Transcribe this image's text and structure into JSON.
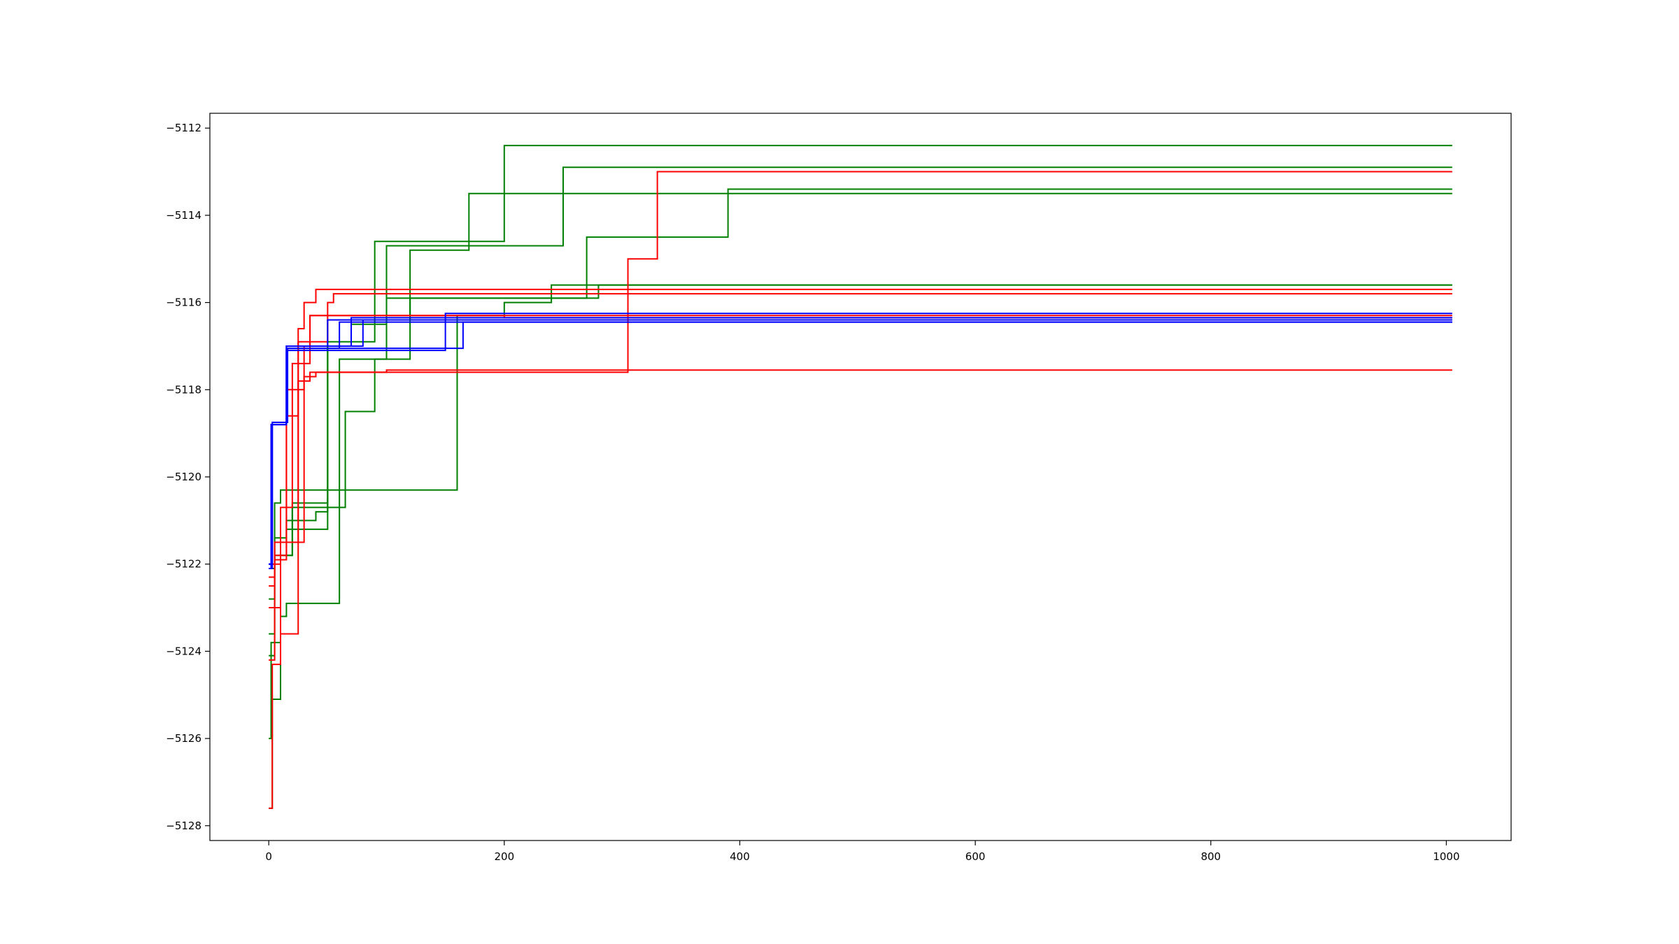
{
  "chart_data": {
    "type": "line",
    "title": "",
    "xlabel": "",
    "ylabel": "",
    "xlim": [
      -50,
      1055
    ],
    "ylim": [
      -5128.34,
      -5111.66
    ],
    "grid": false,
    "legend": "none",
    "x_ticks": [
      0,
      200,
      400,
      600,
      800,
      1000
    ],
    "x_tick_labels": [
      "0",
      "200",
      "400",
      "600",
      "800",
      "1000"
    ],
    "y_ticks": [
      -5112,
      -5114,
      -5116,
      -5118,
      -5120,
      -5122,
      -5124,
      -5126,
      -5128
    ],
    "y_tick_labels": [
      "−5112",
      "−5114",
      "−5116",
      "−5118",
      "−5120",
      "−5122",
      "−5124",
      "−5126",
      "−5128"
    ],
    "colors": {
      "blue": "#0000ff",
      "green": "#008000",
      "red": "#ff0000"
    },
    "series": [
      {
        "color": "#008000",
        "points": [
          [
            0,
            -5127.6
          ],
          [
            3,
            -5127.6
          ],
          [
            3,
            -5125.1
          ],
          [
            10,
            -5125.1
          ],
          [
            10,
            -5121.8
          ],
          [
            20,
            -5121.8
          ],
          [
            20,
            -5121.0
          ],
          [
            40,
            -5121.0
          ],
          [
            40,
            -5120.8
          ],
          [
            50,
            -5120.8
          ],
          [
            50,
            -5116.9
          ],
          [
            90,
            -5116.9
          ],
          [
            90,
            -5114.6
          ],
          [
            200,
            -5114.6
          ],
          [
            200,
            -5112.4
          ],
          [
            1005,
            -5112.4
          ]
        ]
      },
      {
        "color": "#008000",
        "points": [
          [
            0,
            -5126.0
          ],
          [
            2,
            -5126.0
          ],
          [
            2,
            -5123.8
          ],
          [
            10,
            -5123.8
          ],
          [
            10,
            -5123.2
          ],
          [
            15,
            -5123.2
          ],
          [
            15,
            -5122.9
          ],
          [
            60,
            -5122.9
          ],
          [
            60,
            -5117.3
          ],
          [
            100,
            -5117.3
          ],
          [
            100,
            -5114.7
          ],
          [
            250,
            -5114.7
          ],
          [
            250,
            -5112.9
          ],
          [
            1005,
            -5112.9
          ]
        ]
      },
      {
        "color": "#008000",
        "points": [
          [
            0,
            -5124.1
          ],
          [
            5,
            -5124.1
          ],
          [
            5,
            -5121.5
          ],
          [
            15,
            -5121.5
          ],
          [
            15,
            -5121.2
          ],
          [
            50,
            -5121.2
          ],
          [
            50,
            -5116.4
          ],
          [
            120,
            -5116.4
          ],
          [
            120,
            -5114.8
          ],
          [
            170,
            -5114.8
          ],
          [
            170,
            -5113.5
          ],
          [
            1005,
            -5113.5
          ]
        ]
      },
      {
        "color": "#008000",
        "points": [
          [
            0,
            -5123.6
          ],
          [
            5,
            -5123.6
          ],
          [
            5,
            -5121.8
          ],
          [
            20,
            -5121.8
          ],
          [
            20,
            -5120.7
          ],
          [
            65,
            -5120.7
          ],
          [
            65,
            -5118.5
          ],
          [
            90,
            -5118.5
          ],
          [
            90,
            -5117.3
          ],
          [
            120,
            -5117.3
          ],
          [
            120,
            -5115.9
          ],
          [
            270,
            -5115.9
          ],
          [
            270,
            -5114.5
          ],
          [
            390,
            -5114.5
          ],
          [
            390,
            -5113.4
          ],
          [
            1005,
            -5113.4
          ]
        ]
      },
      {
        "color": "#008000",
        "points": [
          [
            0,
            -5122.8
          ],
          [
            5,
            -5122.8
          ],
          [
            5,
            -5120.6
          ],
          [
            10,
            -5120.6
          ],
          [
            10,
            -5120.3
          ],
          [
            160,
            -5120.3
          ],
          [
            160,
            -5116.3
          ],
          [
            200,
            -5116.3
          ],
          [
            200,
            -5116.0
          ],
          [
            240,
            -5116.0
          ],
          [
            240,
            -5115.6
          ],
          [
            1005,
            -5115.6
          ]
        ]
      },
      {
        "color": "#008000",
        "points": [
          [
            0,
            -5122.1
          ],
          [
            5,
            -5122.1
          ],
          [
            5,
            -5121.4
          ],
          [
            15,
            -5121.4
          ],
          [
            15,
            -5121.0
          ],
          [
            20,
            -5121.0
          ],
          [
            20,
            -5120.6
          ],
          [
            50,
            -5120.6
          ],
          [
            50,
            -5117.0
          ],
          [
            70,
            -5117.0
          ],
          [
            70,
            -5116.5
          ],
          [
            100,
            -5116.5
          ],
          [
            100,
            -5115.9
          ],
          [
            280,
            -5115.9
          ],
          [
            280,
            -5115.6
          ],
          [
            1005,
            -5115.6
          ]
        ]
      },
      {
        "color": "#ff0000",
        "points": [
          [
            0,
            -5127.6
          ],
          [
            3,
            -5127.6
          ],
          [
            3,
            -5124.3
          ],
          [
            10,
            -5124.3
          ],
          [
            10,
            -5121.5
          ],
          [
            30,
            -5121.5
          ],
          [
            30,
            -5117.7
          ],
          [
            40,
            -5117.7
          ],
          [
            40,
            -5117.6
          ],
          [
            305,
            -5117.6
          ],
          [
            305,
            -5115.0
          ],
          [
            330,
            -5115.0
          ],
          [
            330,
            -5113.0
          ],
          [
            1005,
            -5113.0
          ]
        ]
      },
      {
        "color": "#ff0000",
        "points": [
          [
            0,
            -5124.2
          ],
          [
            5,
            -5124.2
          ],
          [
            5,
            -5121.8
          ],
          [
            15,
            -5121.8
          ],
          [
            15,
            -5118.6
          ],
          [
            25,
            -5118.6
          ],
          [
            25,
            -5116.6
          ],
          [
            30,
            -5116.6
          ],
          [
            30,
            -5116.0
          ],
          [
            40,
            -5116.0
          ],
          [
            40,
            -5115.7
          ],
          [
            1005,
            -5115.7
          ]
        ]
      },
      {
        "color": "#ff0000",
        "points": [
          [
            0,
            -5122.5
          ],
          [
            5,
            -5122.5
          ],
          [
            5,
            -5121.5
          ],
          [
            25,
            -5121.5
          ],
          [
            25,
            -5117.8
          ],
          [
            35,
            -5117.8
          ],
          [
            35,
            -5117.6
          ],
          [
            100,
            -5117.6
          ],
          [
            100,
            -5117.55
          ],
          [
            1005,
            -5117.55
          ]
        ]
      },
      {
        "color": "#ff0000",
        "points": [
          [
            0,
            -5123.0
          ],
          [
            10,
            -5123.0
          ],
          [
            10,
            -5123.6
          ],
          [
            25,
            -5123.6
          ],
          [
            25,
            -5116.9
          ],
          [
            50,
            -5116.9
          ],
          [
            50,
            -5116.0
          ],
          [
            55,
            -5116.0
          ],
          [
            55,
            -5115.8
          ],
          [
            1005,
            -5115.8
          ]
        ]
      },
      {
        "color": "#ff0000",
        "points": [
          [
            0,
            -5122.0
          ],
          [
            10,
            -5122.0
          ],
          [
            10,
            -5120.7
          ],
          [
            20,
            -5120.7
          ],
          [
            20,
            -5117.4
          ],
          [
            35,
            -5117.4
          ],
          [
            35,
            -5116.3
          ],
          [
            1005,
            -5116.3
          ]
        ]
      },
      {
        "color": "#ff0000",
        "points": [
          [
            0,
            -5122.3
          ],
          [
            5,
            -5122.3
          ],
          [
            5,
            -5121.9
          ],
          [
            15,
            -5121.9
          ],
          [
            15,
            -5118.0
          ],
          [
            30,
            -5118.0
          ],
          [
            30,
            -5117.0
          ],
          [
            35,
            -5117.0
          ],
          [
            35,
            -5116.3
          ],
          [
            200,
            -5116.3
          ],
          [
            200,
            -5116.35
          ],
          [
            1005,
            -5116.35
          ]
        ]
      },
      {
        "color": "#0000ff",
        "points": [
          [
            0,
            -5122.1
          ],
          [
            2,
            -5122.1
          ],
          [
            2,
            -5118.8
          ],
          [
            15,
            -5118.8
          ],
          [
            15,
            -5117.1
          ],
          [
            150,
            -5117.1
          ],
          [
            150,
            -5116.25
          ],
          [
            1005,
            -5116.25
          ]
        ]
      },
      {
        "color": "#0000ff",
        "points": [
          [
            0,
            -5122.0
          ],
          [
            2,
            -5122.0
          ],
          [
            2,
            -5118.8
          ],
          [
            15,
            -5118.8
          ],
          [
            15,
            -5117.0
          ],
          [
            50,
            -5117.0
          ],
          [
            50,
            -5116.4
          ],
          [
            1005,
            -5116.4
          ]
        ]
      },
      {
        "color": "#0000ff",
        "points": [
          [
            0,
            -5122.1
          ],
          [
            2,
            -5122.1
          ],
          [
            2,
            -5118.8
          ],
          [
            15,
            -5118.8
          ],
          [
            15,
            -5117.05
          ],
          [
            60,
            -5117.05
          ],
          [
            60,
            -5116.45
          ],
          [
            1005,
            -5116.45
          ]
        ]
      },
      {
        "color": "#0000ff",
        "points": [
          [
            0,
            -5122.0
          ],
          [
            3,
            -5122.0
          ],
          [
            3,
            -5118.8
          ],
          [
            15,
            -5118.8
          ],
          [
            15,
            -5117.0
          ],
          [
            80,
            -5117.0
          ],
          [
            80,
            -5116.4
          ],
          [
            1005,
            -5116.4
          ]
        ]
      },
      {
        "color": "#0000ff",
        "points": [
          [
            0,
            -5122.1
          ],
          [
            3,
            -5122.1
          ],
          [
            3,
            -5118.75
          ],
          [
            16,
            -5118.75
          ],
          [
            16,
            -5117.05
          ],
          [
            165,
            -5117.05
          ],
          [
            165,
            -5116.45
          ],
          [
            1005,
            -5116.45
          ]
        ]
      },
      {
        "color": "#0000ff",
        "points": [
          [
            0,
            -5122.0
          ],
          [
            2,
            -5122.0
          ],
          [
            2,
            -5118.8
          ],
          [
            15,
            -5118.8
          ],
          [
            15,
            -5117.0
          ],
          [
            70,
            -5117.0
          ],
          [
            70,
            -5116.35
          ],
          [
            1005,
            -5116.35
          ]
        ]
      }
    ]
  }
}
